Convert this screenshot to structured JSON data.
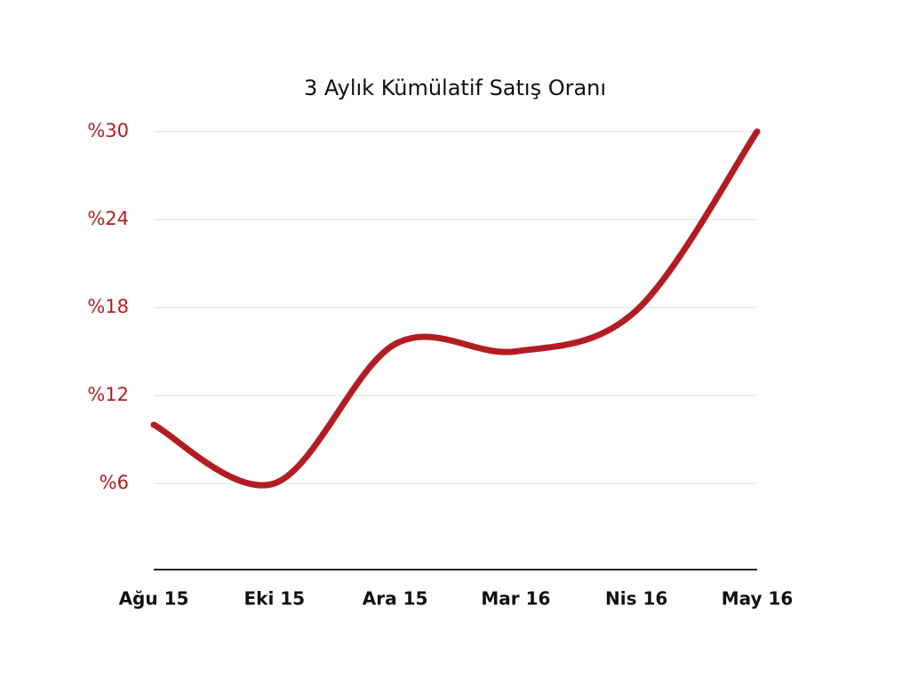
{
  "chart_data": {
    "type": "line",
    "title": "3 Aylık Kümülatif Satış Oranı",
    "categories": [
      "Ağu 15",
      "Eki 15",
      "Ara 15",
      "Mar 16",
      "Nis 16",
      "May 16"
    ],
    "series": [
      {
        "name": "Satış Oranı",
        "color": "#b31d22",
        "values": [
          10,
          6,
          15.5,
          15,
          17.8,
          30
        ]
      }
    ],
    "ylim": [
      0,
      30
    ],
    "yticks": [
      {
        "value": 6,
        "label": "%6"
      },
      {
        "value": 12,
        "label": "%12"
      },
      {
        "value": 18,
        "label": "%18"
      },
      {
        "value": 24,
        "label": "%24"
      },
      {
        "value": 30,
        "label": "%30"
      }
    ],
    "grid": true,
    "smooth": true
  }
}
